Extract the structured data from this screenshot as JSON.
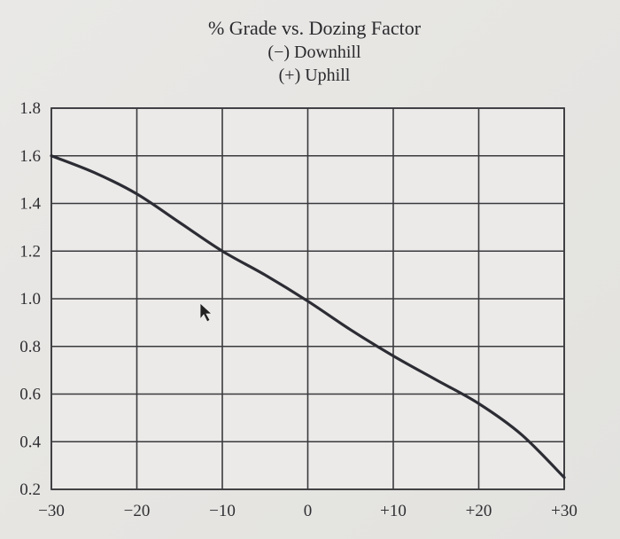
{
  "chart_data": {
    "type": "line",
    "title": "% Grade vs. Dozing Factor",
    "subtitle_lines": [
      "(−) Downhill",
      "(+) Uphill"
    ],
    "xlabel": "",
    "ylabel": "",
    "x_ticks": [
      -30,
      -20,
      -10,
      0,
      10,
      20,
      30
    ],
    "x_tick_labels": [
      "−30",
      "−20",
      "−10",
      "0",
      "+10",
      "+20",
      "+30"
    ],
    "y_ticks": [
      0.2,
      0.4,
      0.6,
      0.8,
      1.0,
      1.2,
      1.4,
      1.6,
      1.8
    ],
    "y_tick_labels": [
      "0.2",
      "0.4",
      "0.6",
      "0.8",
      "1.0",
      "1.2",
      "1.4",
      "1.6",
      "1.8"
    ],
    "xlim": [
      -30,
      30
    ],
    "ylim": [
      0.2,
      1.8
    ],
    "grid": true,
    "legend": null,
    "series": [
      {
        "name": "Dozing Factor",
        "x": [
          -30,
          -25,
          -20,
          -15,
          -10,
          -5,
          0,
          5,
          10,
          15,
          20,
          25,
          30
        ],
        "y": [
          1.6,
          1.53,
          1.44,
          1.32,
          1.2,
          1.1,
          0.99,
          0.87,
          0.76,
          0.66,
          0.56,
          0.43,
          0.25
        ]
      }
    ],
    "colors": {
      "line": "#2c2c34",
      "grid": "#3a3a3e",
      "background": "#e8e7e5"
    }
  },
  "title": "% Grade vs. Dozing Factor",
  "subtitle": [
    "(−) Downhill",
    "(+) Uphill"
  ]
}
